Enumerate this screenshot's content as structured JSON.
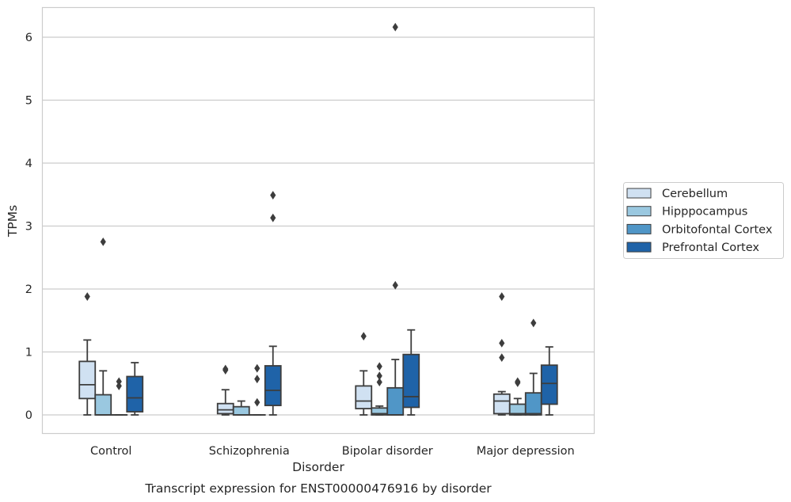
{
  "chart_data": {
    "type": "box",
    "title": "",
    "caption": "Transcript expression for ENST00000476916 by disorder",
    "xlabel": "Disorder",
    "ylabel": "TPMs",
    "ylim": [
      -0.3,
      6.5
    ],
    "yticks": [
      0,
      1,
      2,
      3,
      4,
      5,
      6
    ],
    "grid": "horizontal",
    "legend_position": "right",
    "categories": [
      "Control",
      "Schizophrenia",
      "Bipolar disorder",
      "Major depression"
    ],
    "series": [
      {
        "name": "Cerebellum",
        "color": "#d0e1f2",
        "boxes": [
          {
            "min": 0.0,
            "q1": 0.26,
            "median": 0.48,
            "q3": 0.85,
            "max": 1.19,
            "outliers": [
              1.88
            ]
          },
          {
            "min": 0.0,
            "q1": 0.02,
            "median": 0.08,
            "q3": 0.18,
            "max": 0.4,
            "outliers": [
              0.71,
              0.73
            ]
          },
          {
            "min": 0.0,
            "q1": 0.1,
            "median": 0.22,
            "q3": 0.46,
            "max": 0.7,
            "outliers": [
              1.25
            ]
          },
          {
            "min": 0.0,
            "q1": 0.02,
            "median": 0.22,
            "q3": 0.33,
            "max": 0.37,
            "outliers": [
              0.91,
              1.14,
              1.88
            ]
          }
        ]
      },
      {
        "name": "Hipppocampus",
        "color": "#9ac8e0",
        "boxes": [
          {
            "min": 0.0,
            "q1": 0.0,
            "median": 0.0,
            "q3": 0.32,
            "max": 0.7,
            "outliers": [
              2.75
            ]
          },
          {
            "min": 0.0,
            "q1": 0.0,
            "median": 0.0,
            "q3": 0.13,
            "max": 0.22,
            "outliers": []
          },
          {
            "min": 0.0,
            "q1": 0.0,
            "median": 0.02,
            "q3": 0.11,
            "max": 0.14,
            "outliers": [
              0.52,
              0.62,
              0.77
            ]
          },
          {
            "min": 0.0,
            "q1": 0.0,
            "median": 0.02,
            "q3": 0.17,
            "max": 0.26,
            "outliers": [
              0.51,
              0.53
            ]
          }
        ]
      },
      {
        "name": "Orbitofontal Cortex",
        "color": "#5096c7",
        "boxes": [
          {
            "min": 0.0,
            "q1": 0.0,
            "median": 0.0,
            "q3": 0.0,
            "max": 0.0,
            "outliers": [
              0.46,
              0.53
            ]
          },
          {
            "min": 0.0,
            "q1": 0.0,
            "median": 0.0,
            "q3": 0.0,
            "max": 0.0,
            "outliers": [
              0.2,
              0.57,
              0.74
            ]
          },
          {
            "min": 0.0,
            "q1": 0.0,
            "median": 0.0,
            "q3": 0.43,
            "max": 0.88,
            "outliers": [
              2.06,
              6.16
            ]
          },
          {
            "min": 0.0,
            "q1": 0.0,
            "median": 0.02,
            "q3": 0.35,
            "max": 0.66,
            "outliers": [
              1.46
            ]
          }
        ]
      },
      {
        "name": "Prefrontal Cortex",
        "color": "#1f63a8",
        "boxes": [
          {
            "min": 0.0,
            "q1": 0.05,
            "median": 0.27,
            "q3": 0.61,
            "max": 0.83,
            "outliers": []
          },
          {
            "min": 0.0,
            "q1": 0.15,
            "median": 0.39,
            "q3": 0.78,
            "max": 1.09,
            "outliers": [
              3.13,
              3.49
            ]
          },
          {
            "min": 0.0,
            "q1": 0.12,
            "median": 0.29,
            "q3": 0.96,
            "max": 1.35,
            "outliers": []
          },
          {
            "min": 0.0,
            "q1": 0.17,
            "median": 0.5,
            "q3": 0.79,
            "max": 1.08,
            "outliers": []
          }
        ]
      }
    ]
  }
}
